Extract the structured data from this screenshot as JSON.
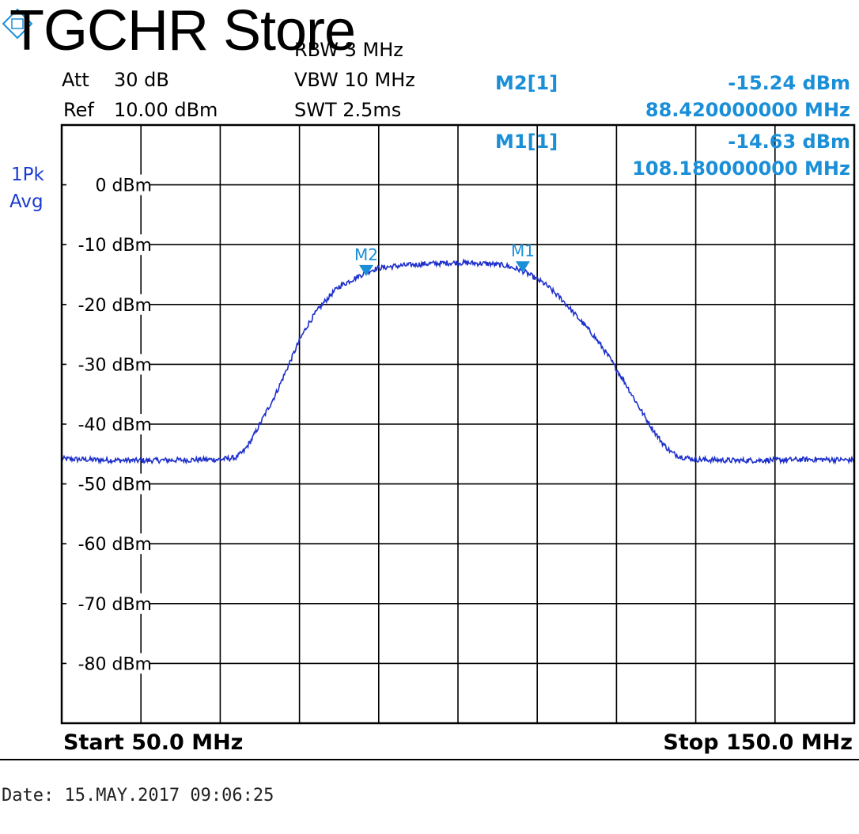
{
  "watermark": {
    "text": "TGCHR Store"
  },
  "settings": {
    "att_label": "Att",
    "att_value": "30 dB",
    "ref_label": "Ref",
    "ref_value": "10.00 dBm",
    "rbw": "RBW 3 MHz",
    "vbw": "VBW 10 MHz",
    "swt": "SWT 2.5ms"
  },
  "trace_mode": {
    "line1": "1Pk",
    "line2": "Avg"
  },
  "markers": [
    {
      "id": "M2[1]",
      "level": "-15.24 dBm",
      "freq": "88.420000000 MHz"
    },
    {
      "id": "M1[1]",
      "level": "-14.63 dBm",
      "freq": "108.180000000 MHz"
    }
  ],
  "footer": {
    "start": "Start 50.0 MHz",
    "stop": "Stop 150.0 MHz"
  },
  "date_line": "Date: 15.MAY.2017  09:06:25",
  "colors": {
    "trace": "#1d2fcc",
    "marker": "#1a8fd8",
    "grid": "#000000"
  },
  "chart_data": {
    "type": "line",
    "title": "",
    "xlabel": "",
    "ylabel": "",
    "xlim": [
      50.0,
      150.0
    ],
    "ylim": [
      -90,
      10
    ],
    "grid": true,
    "ytick_labels": [
      "0 dBm",
      "-10 dBm",
      "-20 dBm",
      "-30 dBm",
      "-40 dBm",
      "-50 dBm",
      "-60 dBm",
      "-70 dBm",
      "-80 dBm"
    ],
    "ytick_values": [
      0,
      -10,
      -20,
      -30,
      -40,
      -50,
      -60,
      -70,
      -80
    ],
    "series": [
      {
        "x": [
          50,
          55,
          60,
          65,
          70,
          72,
          73,
          74,
          75,
          76,
          77,
          78,
          79,
          80,
          81,
          82,
          83,
          84,
          85,
          86,
          87,
          88,
          89,
          90,
          92,
          94,
          96,
          98,
          100,
          102,
          104,
          106,
          107,
          108,
          109,
          110,
          111,
          112,
          113,
          114,
          115,
          116,
          117,
          118,
          119,
          120,
          121,
          122,
          123,
          124,
          125,
          126,
          127,
          128,
          130,
          135,
          140,
          145,
          150
        ],
        "y": [
          -45.8,
          -46.0,
          -46.1,
          -46.0,
          -45.9,
          -45.6,
          -44.5,
          -42.5,
          -40.0,
          -37.5,
          -35.0,
          -32.0,
          -29.0,
          -26.0,
          -23.5,
          -21.5,
          -19.8,
          -18.3,
          -17.0,
          -16.3,
          -15.6,
          -14.9,
          -14.3,
          -13.9,
          -13.6,
          -13.4,
          -13.2,
          -13.1,
          -13.0,
          -13.1,
          -13.2,
          -13.5,
          -13.9,
          -14.3,
          -15.0,
          -15.8,
          -16.6,
          -17.8,
          -19.0,
          -20.5,
          -22.0,
          -23.5,
          -25.0,
          -26.8,
          -28.7,
          -30.8,
          -32.9,
          -35.2,
          -37.5,
          -39.7,
          -41.7,
          -43.5,
          -44.8,
          -45.4,
          -45.9,
          -46.1,
          -46.0,
          -45.9,
          -46.0
        ]
      }
    ],
    "markers": [
      {
        "name": "M2",
        "x": 88.42,
        "y": -15.24
      },
      {
        "name": "M1",
        "x": 108.18,
        "y": -14.63
      }
    ]
  }
}
